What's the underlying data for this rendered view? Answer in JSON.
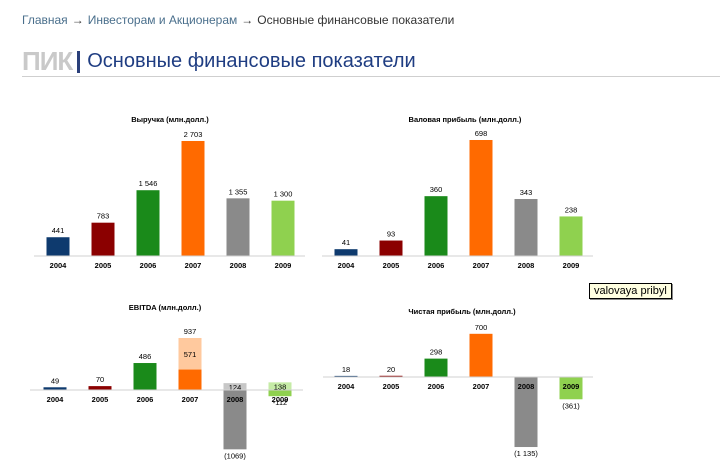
{
  "breadcrumb": {
    "items": [
      "Главная",
      "Инвесторам и Акционерам",
      "Основные финансовые показатели"
    ],
    "separator": "→"
  },
  "header": {
    "logo": "ПИК",
    "title": "Основные финансовые показатели"
  },
  "tooltip": "valovaya pribyl",
  "colors": {
    "2004": "#0e3a6e",
    "2005": "#8b0000",
    "2006": "#1a8a1a",
    "2007": "#ff6a00",
    "2008": "#8a8a8a",
    "2009": "#8fd14f",
    "2007_segment": "#ffc99e",
    "2008_segment": "#c7c7c7",
    "2009_segment": "#c5eba6"
  },
  "chart_data": [
    {
      "type": "bar",
      "title": "Выручка (млн.долл.)",
      "categories": [
        "2004",
        "2005",
        "2006",
        "2007",
        "2008",
        "2009"
      ],
      "values": [
        441,
        783,
        1546,
        2703,
        1355,
        1300
      ],
      "labels": [
        "441",
        "783",
        "1 546",
        "2 703",
        "1 355",
        "1 300"
      ]
    },
    {
      "type": "bar",
      "title": "Валовая прибыль (млн.долл.)",
      "categories": [
        "2004",
        "2005",
        "2006",
        "2007",
        "2008",
        "2009"
      ],
      "values": [
        41,
        93,
        360,
        698,
        343,
        238
      ],
      "labels": [
        "41",
        "93",
        "360",
        "698",
        "343",
        "238"
      ]
    },
    {
      "type": "bar",
      "title": "EBITDA (млн.долл.)",
      "categories": [
        "2004",
        "2005",
        "2006",
        "2007",
        "2008",
        "2009"
      ],
      "values": [
        49,
        70,
        486,
        937,
        -1069,
        -112
      ],
      "labels": [
        "49",
        "70",
        "486",
        "937",
        "(1069)",
        "-112"
      ],
      "segments": [
        {
          "category": "2007",
          "value": 571,
          "label": "571"
        },
        {
          "category": "2008",
          "value": 124,
          "label": "124"
        },
        {
          "category": "2009",
          "value": 138,
          "label": "138"
        }
      ]
    },
    {
      "type": "bar",
      "title": "Чистая прибыль (млн.долл.)",
      "categories": [
        "2004",
        "2005",
        "2006",
        "2007",
        "2008",
        "2009"
      ],
      "values": [
        18,
        20,
        298,
        700,
        -1135,
        -361
      ],
      "labels": [
        "18",
        "20",
        "298",
        "700",
        "(1 135)",
        "(361)"
      ]
    }
  ]
}
